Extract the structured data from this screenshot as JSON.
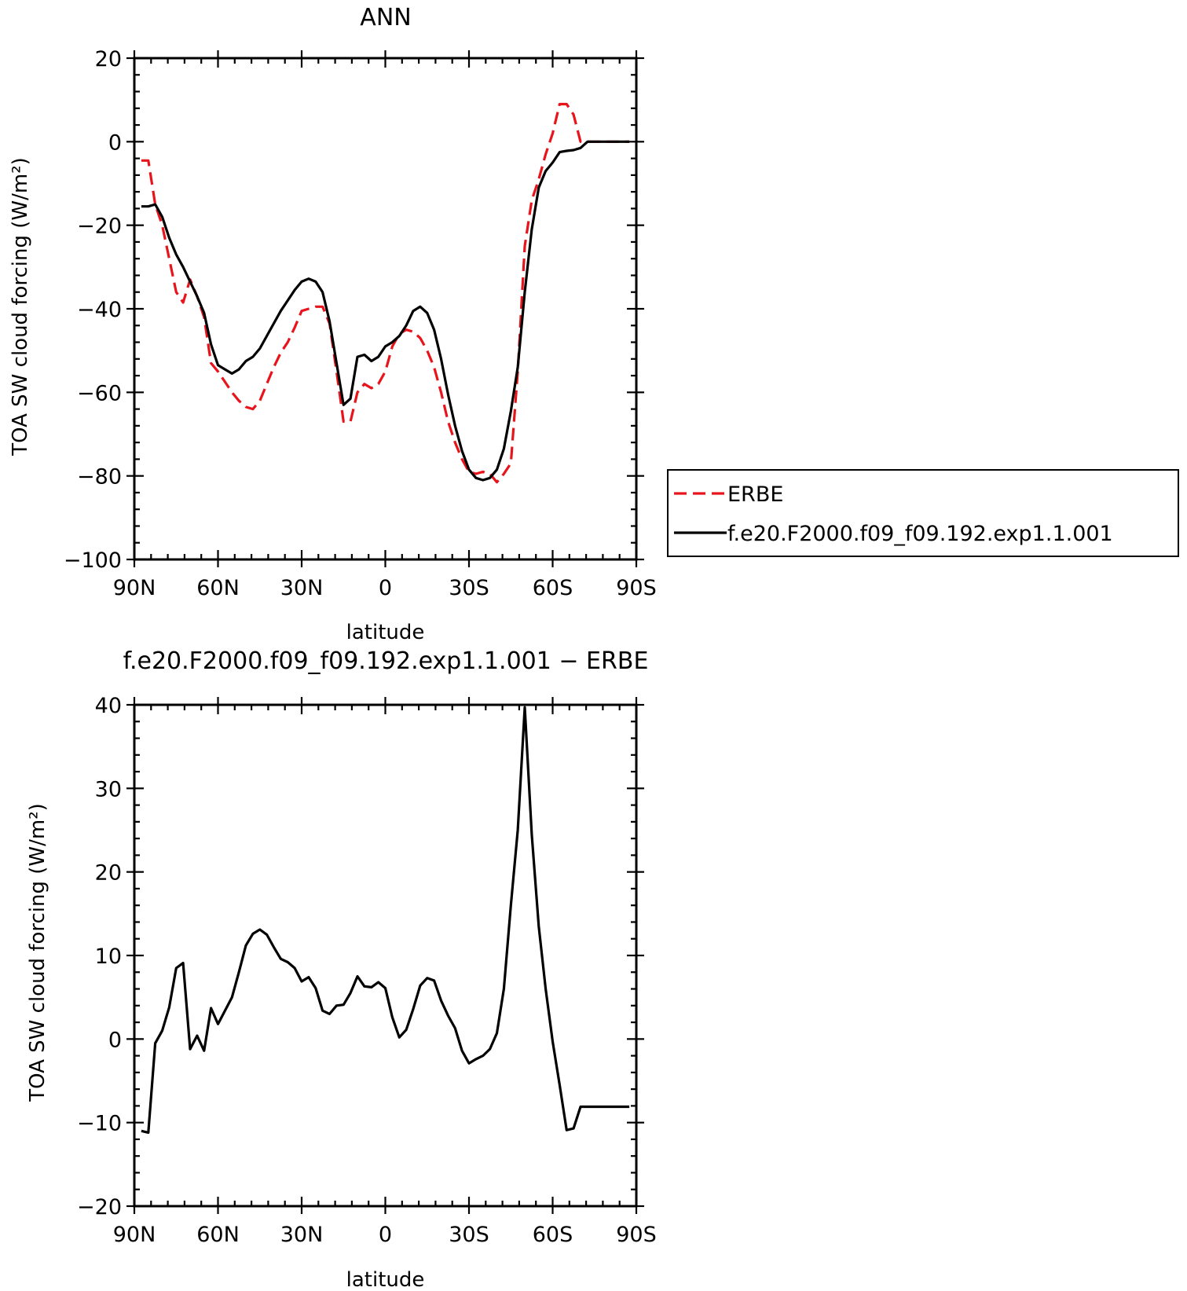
{
  "chart_data": [
    {
      "type": "line",
      "title": "ANN",
      "xlabel": "latitude",
      "ylabel": "TOA SW cloud forcing (W/m²)",
      "xlim": [
        -90,
        90
      ],
      "ylim": [
        -100,
        20
      ],
      "x_ticks": [
        -90,
        -60,
        -30,
        0,
        30,
        60,
        90
      ],
      "x_tick_labels": [
        "90N",
        "60N",
        "30N",
        "0",
        "30S",
        "60S",
        "90S"
      ],
      "y_ticks": [
        20,
        0,
        -20,
        -40,
        -60,
        -80,
        -100
      ],
      "y_tick_labels": [
        "20",
        "0",
        "−20",
        "−40",
        "−60",
        "−80",
        "−100"
      ],
      "legend_position": "right",
      "series": [
        {
          "name": "ERBE",
          "color": "#e8141c",
          "dash": "dashed",
          "x": [
            -87.5,
            -85,
            -82.5,
            -80,
            -77.5,
            -75,
            -72.5,
            -70,
            -67.5,
            -65,
            -62.5,
            -60,
            -57.5,
            -55,
            -52.5,
            -50,
            -47.5,
            -45,
            -42.5,
            -40,
            -37.5,
            -35,
            -32.5,
            -30,
            -27.5,
            -25,
            -22.5,
            -20,
            -17.5,
            -15,
            -12.5,
            -10,
            -7.5,
            -5,
            -2.5,
            0,
            2.5,
            5,
            7.5,
            10,
            12.5,
            15,
            17.5,
            20,
            22.5,
            25,
            27.5,
            30,
            32.5,
            35,
            37.5,
            40,
            42.5,
            45,
            47.5,
            50,
            52.5,
            55,
            57.5,
            60,
            62.5,
            65,
            67.5,
            70,
            72.5,
            75,
            77.5,
            80,
            82.5,
            85,
            87.5
          ],
          "y": [
            -4.5,
            -4.5,
            -15,
            -20,
            -28,
            -36,
            -38.5,
            -33,
            -37,
            -42,
            -53,
            -55,
            -57.5,
            -60,
            -62,
            -63.5,
            -64,
            -62,
            -58,
            -54,
            -50.5,
            -48,
            -44.5,
            -40.5,
            -40,
            -39.5,
            -39.5,
            -43.5,
            -55,
            -67,
            -67,
            -60,
            -58,
            -59,
            -58,
            -55,
            -49,
            -46,
            -45,
            -45.5,
            -47,
            -50,
            -54,
            -60,
            -67,
            -72,
            -76,
            -79,
            -79.5,
            -79,
            -79.5,
            -81.5,
            -79.5,
            -77,
            -55,
            -25,
            -14,
            -9,
            -3,
            2,
            9,
            9,
            6.5,
            0,
            0,
            0,
            0,
            0,
            0,
            0,
            0
          ]
        },
        {
          "name": "f.e20.F2000.f09_f09.192.exp1.1.001",
          "color": "#000000",
          "dash": "solid",
          "x": [
            -87.5,
            -85,
            -82.5,
            -80,
            -77.5,
            -75,
            -72.5,
            -70,
            -67.5,
            -65,
            -62.5,
            -60,
            -57.5,
            -55,
            -52.5,
            -50,
            -47.5,
            -45,
            -42.5,
            -40,
            -37.5,
            -35,
            -32.5,
            -30,
            -27.5,
            -25,
            -22.5,
            -20,
            -17.5,
            -15,
            -12.5,
            -10,
            -7.5,
            -5,
            -2.5,
            0,
            2.5,
            5,
            7.5,
            10,
            12.5,
            15,
            17.5,
            20,
            22.5,
            25,
            27.5,
            30,
            32.5,
            35,
            37.5,
            40,
            42.5,
            45,
            47.5,
            50,
            52.5,
            55,
            57.5,
            60,
            62.5,
            65,
            67.5,
            70,
            72.5,
            75,
            77.5,
            80,
            82.5,
            85,
            87.5
          ],
          "y": [
            -15.5,
            -15.5,
            -15,
            -18,
            -23,
            -27,
            -30,
            -33.5,
            -37,
            -41,
            -48.5,
            -53.5,
            -54.5,
            -55.5,
            -54.5,
            -52.5,
            -51.5,
            -49.5,
            -46.5,
            -43.5,
            -40.5,
            -38,
            -35.5,
            -33.5,
            -32.8,
            -33.5,
            -36,
            -43,
            -53,
            -63,
            -61.5,
            -51.5,
            -51,
            -52.5,
            -51.5,
            -49,
            -48,
            -46.5,
            -44,
            -40.5,
            -39.5,
            -41,
            -45,
            -52,
            -60.5,
            -68,
            -74,
            -78.5,
            -80.5,
            -81,
            -80.5,
            -78.5,
            -73.5,
            -64.5,
            -54,
            -36,
            -21,
            -11,
            -7,
            -5,
            -2.5,
            -2.2,
            -2,
            -1.5,
            0,
            0,
            0,
            0,
            0,
            0,
            0
          ]
        }
      ]
    },
    {
      "type": "line",
      "title": "f.e20.F2000.f09_f09.192.exp1.1.001 − ERBE",
      "xlabel": "latitude",
      "ylabel": "TOA SW cloud forcing (W/m²)",
      "xlim": [
        -90,
        90
      ],
      "ylim": [
        -20,
        40
      ],
      "x_ticks": [
        -90,
        -60,
        -30,
        0,
        30,
        60,
        90
      ],
      "x_tick_labels": [
        "90N",
        "60N",
        "30N",
        "0",
        "30S",
        "60S",
        "90S"
      ],
      "y_ticks": [
        40,
        30,
        20,
        10,
        0,
        -10,
        -20
      ],
      "y_tick_labels": [
        "40",
        "30",
        "20",
        "10",
        "0",
        "−10",
        "−20"
      ],
      "series": [
        {
          "color": "#000000",
          "dash": "solid",
          "x": [
            -87.5,
            -85,
            -82.5,
            -80,
            -77.5,
            -75,
            -72.5,
            -70,
            -67.5,
            -65,
            -62.5,
            -60,
            -57.5,
            -55,
            -52.5,
            -50,
            -47.5,
            -45,
            -42.5,
            -40,
            -37.5,
            -35,
            -32.5,
            -30,
            -27.5,
            -25,
            -22.5,
            -20,
            -17.5,
            -15,
            -12.5,
            -10,
            -7.5,
            -5,
            -2.5,
            0,
            2.5,
            5,
            7.5,
            10,
            12.5,
            15,
            17.5,
            20,
            22.5,
            25,
            27.5,
            30,
            32.5,
            35,
            37.5,
            40,
            42.5,
            45,
            47.5,
            50,
            52.5,
            55,
            57.5,
            60,
            62.5,
            65,
            67.5,
            70,
            72.5,
            75,
            77.5,
            80,
            82.5,
            85,
            87.5
          ],
          "y": [
            -11,
            -11.2,
            -0.5,
            1,
            3.8,
            8.5,
            9.1,
            -1.2,
            0.4,
            -1.4,
            3.7,
            1.8,
            3.4,
            5,
            8,
            11.2,
            12.6,
            13.1,
            12.5,
            11,
            9.6,
            9.2,
            8.5,
            6.9,
            7.4,
            6.1,
            3.4,
            3,
            4,
            4.1,
            5.5,
            7.5,
            6.3,
            6.2,
            6.8,
            6.1,
            2.6,
            0.2,
            1.1,
            3.6,
            6.4,
            7.3,
            7,
            4.6,
            2.8,
            1.3,
            -1.4,
            -2.9,
            -2.4,
            -2,
            -1.2,
            0.7,
            6,
            16,
            25,
            39.7,
            24.5,
            13.5,
            6,
            -0.3,
            -5.5,
            -10.9,
            -10.7,
            -8.1,
            -8.1,
            -8.1,
            -8.1,
            -8.1,
            -8.1,
            -8.1,
            -8.1
          ]
        }
      ]
    }
  ]
}
